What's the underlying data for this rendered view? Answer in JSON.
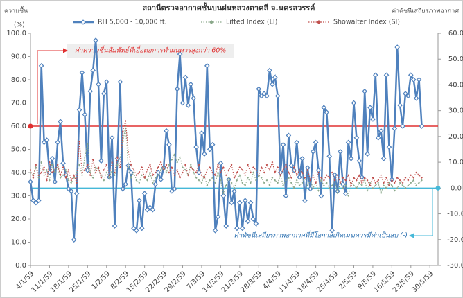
{
  "chart_data": {
    "type": "line",
    "title": "สถานีตรวจอากาศชั้นบนฝนหลวงตาคลี  จ.นครสวรรค์",
    "y_label": [
      "ความชื้น",
      "(%)"
    ],
    "y2_label": "ค่าดัชนีเสถียรภาพอากาศ",
    "x": [
      0,
      1,
      2,
      3,
      4,
      5,
      6,
      7,
      8,
      9,
      10,
      11,
      12,
      13,
      14,
      15,
      16,
      17,
      18,
      19,
      20,
      21,
      22,
      23,
      24,
      25,
      26,
      27,
      28,
      29,
      30,
      31,
      32,
      33,
      34,
      35,
      36,
      37,
      38,
      39,
      40,
      41,
      42,
      43,
      44,
      45,
      46,
      47,
      48,
      49,
      50,
      51,
      52,
      53,
      54,
      55,
      56,
      57,
      58,
      59,
      60,
      61,
      62,
      63,
      64,
      65,
      66,
      67,
      68,
      69,
      70,
      71,
      72,
      73,
      74,
      75,
      76,
      77,
      78,
      79,
      80,
      81,
      82,
      83,
      84,
      85,
      86,
      87,
      88,
      89,
      90,
      91,
      92,
      93,
      94,
      95,
      96,
      97,
      98,
      99,
      100,
      101,
      102,
      103,
      104,
      105,
      106,
      107,
      108,
      109,
      110,
      111,
      112,
      113,
      114,
      115,
      116,
      117,
      118,
      119,
      120,
      121,
      122,
      123,
      124,
      125,
      126,
      127,
      128,
      129,
      130,
      131,
      132,
      133,
      134,
      135,
      136,
      137,
      138,
      139,
      140,
      141,
      142,
      143,
      144
    ],
    "xlim": [
      0,
      150
    ],
    "xticks": [
      {
        "value": 0,
        "label": "4/1/59"
      },
      {
        "value": 7,
        "label": "11/1/59"
      },
      {
        "value": 14,
        "label": "18/1/59"
      },
      {
        "value": 21,
        "label": "25/1/59"
      },
      {
        "value": 28,
        "label": "1/2/59"
      },
      {
        "value": 35,
        "label": "8/2/59"
      },
      {
        "value": 42,
        "label": "15/2/59"
      },
      {
        "value": 49,
        "label": "22/2/59"
      },
      {
        "value": 56,
        "label": "29/2/59"
      },
      {
        "value": 63,
        "label": "7/3/59"
      },
      {
        "value": 70,
        "label": "14/3/59"
      },
      {
        "value": 77,
        "label": "21/3/59"
      },
      {
        "value": 84,
        "label": "28/3/59"
      },
      {
        "value": 91,
        "label": "4/4/59"
      },
      {
        "value": 98,
        "label": "11/4/59"
      },
      {
        "value": 105,
        "label": "18/4/59"
      },
      {
        "value": 112,
        "label": "25/4/59"
      },
      {
        "value": 119,
        "label": "2/5/59"
      },
      {
        "value": 126,
        "label": "9/5/59"
      },
      {
        "value": 133,
        "label": "16/5/59"
      },
      {
        "value": 140,
        "label": "23/5/59"
      },
      {
        "value": 147,
        "label": "30/5/59"
      }
    ],
    "ylim": [
      0,
      100
    ],
    "yticks": [
      {
        "value": 0,
        "label": "0.0"
      },
      {
        "value": 10,
        "label": "10.0"
      },
      {
        "value": 20,
        "label": "20.0"
      },
      {
        "value": 30,
        "label": "30.0"
      },
      {
        "value": 40,
        "label": "40.0"
      },
      {
        "value": 50,
        "label": "50.0"
      },
      {
        "value": 60,
        "label": "60.0"
      },
      {
        "value": 70,
        "label": "70.0"
      },
      {
        "value": 80,
        "label": "80.0"
      },
      {
        "value": 90,
        "label": "90.0"
      },
      {
        "value": 100,
        "label": "100.0"
      }
    ],
    "y2lim": [
      -30,
      60
    ],
    "y2ticks": [
      {
        "value": -30,
        "label": "-30.0"
      },
      {
        "value": -20,
        "label": "-20.0"
      },
      {
        "value": -10,
        "label": "-10.0"
      },
      {
        "value": 0,
        "label": "0.0"
      },
      {
        "value": 10,
        "label": "10.0"
      },
      {
        "value": 20,
        "label": "20.0"
      },
      {
        "value": 30,
        "label": "30.0"
      },
      {
        "value": 40,
        "label": "40.0"
      },
      {
        "value": 50,
        "label": "50.0"
      },
      {
        "value": 60,
        "label": "60.0"
      }
    ],
    "series": [
      {
        "name": "RH 5,000 - 10,000 ft.",
        "color": "#4f81bd",
        "values": [
          36,
          28,
          27,
          28,
          86,
          53,
          54,
          40,
          46,
          36,
          53,
          62,
          44,
          39,
          33,
          32,
          11,
          31,
          67,
          83,
          65,
          41,
          75,
          84,
          97,
          78,
          45,
          74,
          79,
          38,
          55,
          17,
          46,
          79,
          33,
          35,
          43,
          40,
          16,
          15,
          28,
          16,
          31,
          24,
          25,
          24,
          35,
          40,
          37,
          42,
          58,
          52,
          32,
          33,
          76,
          91,
          70,
          81,
          69,
          78,
          72,
          51,
          40,
          57,
          48,
          86,
          50,
          52,
          15,
          21,
          44,
          30,
          17,
          37,
          27,
          32,
          16,
          27,
          16,
          28,
          19,
          27,
          20,
          18,
          76,
          73,
          74,
          73,
          84,
          78,
          81,
          73,
          40,
          52,
          30,
          56,
          43,
          41,
          53,
          38,
          46,
          28,
          42,
          33,
          49,
          53,
          41,
          30,
          68,
          66,
          47,
          15,
          39,
          32,
          49,
          35,
          31,
          53,
          46,
          70,
          55,
          45,
          38,
          75,
          48,
          68,
          63,
          82,
          55,
          58,
          46,
          82,
          51,
          37,
          59,
          94,
          69,
          60,
          74,
          73,
          82,
          80,
          72,
          80,
          60
        ]
      },
      {
        "name": "Lifted Index (LI)",
        "color": "#8aa88a",
        "axis": "y2",
        "values": [
          6,
          5,
          8,
          4,
          10,
          5,
          7,
          3,
          9,
          6,
          8,
          4,
          5,
          7,
          3,
          2,
          4,
          6,
          9,
          5,
          12,
          17,
          6,
          4,
          8,
          7,
          5,
          3,
          6,
          4,
          7,
          5,
          9,
          12,
          18,
          24,
          8,
          4,
          6,
          3,
          2,
          5,
          4,
          3,
          6,
          2,
          4,
          5,
          7,
          8,
          6,
          9,
          11,
          13,
          10,
          12,
          8,
          7,
          5,
          9,
          6,
          4,
          3,
          2,
          5,
          1,
          3,
          4,
          2,
          6,
          3,
          -2,
          1,
          4,
          2,
          0,
          3,
          5,
          2,
          1,
          4,
          2,
          6,
          3,
          5,
          4,
          2,
          3,
          1,
          4,
          3,
          2,
          5,
          1,
          3,
          4,
          2,
          0,
          3,
          1,
          2,
          4,
          1,
          3,
          0,
          2,
          -1,
          3,
          1,
          2,
          0,
          1,
          3,
          -2,
          2,
          0,
          1,
          -3,
          2,
          1,
          0,
          2,
          1,
          3,
          -1,
          2,
          0,
          1,
          2,
          -2,
          1,
          0,
          2,
          1,
          -1,
          0,
          2,
          1,
          0,
          1,
          2,
          3,
          1,
          2,
          3
        ]
      },
      {
        "name": "Showalter Index (SI)",
        "color": "#c0504d",
        "axis": "y2",
        "values": [
          7,
          4,
          9,
          5,
          6,
          8,
          3,
          10,
          6,
          7,
          9,
          5,
          8,
          4,
          7,
          3,
          5,
          2,
          18,
          6,
          7,
          9,
          5,
          11,
          6,
          8,
          4,
          7,
          9,
          5,
          10,
          6,
          12,
          8,
          22,
          26,
          14,
          9,
          7,
          5,
          6,
          8,
          4,
          7,
          9,
          5,
          6,
          8,
          10,
          7,
          9,
          6,
          8,
          5,
          7,
          4,
          6,
          9,
          5,
          8,
          7,
          6,
          9,
          5,
          4,
          7,
          8,
          6,
          5,
          9,
          6,
          8,
          5,
          7,
          9,
          4,
          6,
          8,
          7,
          5,
          9,
          6,
          8,
          7,
          5,
          8,
          6,
          9,
          7,
          10,
          6,
          8,
          5,
          7,
          9,
          6,
          4,
          8,
          5,
          7,
          6,
          4,
          7,
          3,
          5,
          2,
          6,
          4,
          3,
          5,
          4,
          6,
          3,
          5,
          2,
          4,
          3,
          5,
          1,
          4,
          3,
          5,
          2,
          4,
          3,
          1,
          4,
          2,
          3,
          5,
          2,
          4,
          1,
          3,
          2,
          4,
          3,
          2,
          4,
          3,
          5,
          4,
          6,
          5,
          4
        ]
      }
    ],
    "annotations": [
      {
        "text": "ค่าความชื้นสัมพัทธ์ที่เอื้อต่อการทำฝนควรสูงกว่า 60%",
        "value": 60,
        "color": "#e03030"
      },
      {
        "text": "ค่าดัชนีเสถียรภาพอากาศที่มีโอกาสเกิดเมฆควรมีค่าเป็นลบ (-)",
        "value": 0,
        "axis": "y2",
        "color": "#45b8d8"
      }
    ],
    "legend": "top"
  }
}
